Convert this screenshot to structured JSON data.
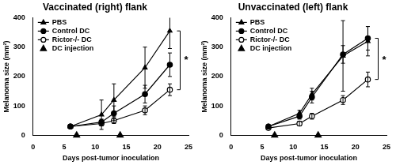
{
  "chart_data": [
    {
      "type": "line",
      "title": "Vaccinated (right) flank",
      "x_label": "Days post-tumor inoculation",
      "y_label": "Melanoma size (mm²)",
      "xlim": [
        0,
        25
      ],
      "xticks": [
        0,
        5,
        10,
        15,
        20,
        25
      ],
      "ylim": [
        0,
        400
      ],
      "yticks": [
        0,
        100,
        200,
        300,
        400
      ],
      "grid": false,
      "legend": "upper left",
      "series": [
        {
          "name": "PBS",
          "color": "#000000",
          "marker": "triangle",
          "line_style": "solid",
          "x": [
            6,
            11,
            13,
            18,
            22
          ],
          "values": [
            30,
            70,
            120,
            230,
            355
          ],
          "errors": [
            3,
            50,
            55,
            70,
            60
          ]
        },
        {
          "name": "Control DC",
          "color": "#000000",
          "marker": "circle",
          "line_style": "solid",
          "x": [
            6,
            11,
            13,
            18,
            22
          ],
          "values": [
            30,
            45,
            75,
            140,
            240
          ],
          "errors": [
            3,
            10,
            25,
            30,
            40
          ]
        },
        {
          "name": "Rictor-/- DC",
          "color": "#000000",
          "marker": "open_circle",
          "line_style": "solid",
          "x": [
            6,
            11,
            13,
            18,
            22
          ],
          "values": [
            30,
            40,
            50,
            85,
            155
          ],
          "errors": [
            3,
            8,
            10,
            15,
            20
          ]
        },
        {
          "name": "DC injection",
          "color": "#000000",
          "marker": "triangle",
          "line_style": "none",
          "x": [
            7,
            14
          ],
          "values": [
            0,
            0
          ]
        }
      ],
      "annotations": [
        {
          "text": "*",
          "x": 24.3,
          "y": 255
        }
      ]
    },
    {
      "type": "line",
      "title": "Unvaccinated (left) flank",
      "x_label": "Days post-tumor inoculation",
      "y_label": "Melanoma size (mm²)",
      "xlim": [
        0,
        25
      ],
      "xticks": [
        0,
        5,
        10,
        15,
        20,
        25
      ],
      "ylim": [
        0,
        400
      ],
      "yticks": [
        0,
        100,
        200,
        300,
        400
      ],
      "grid": false,
      "legend": "upper left",
      "series": [
        {
          "name": "PBS",
          "color": "#000000",
          "marker": "triangle",
          "line_style": "solid",
          "x": [
            6,
            11,
            13,
            18,
            22
          ],
          "values": [
            30,
            75,
            140,
            270,
            320
          ],
          "errors": [
            3,
            10,
            20,
            120,
            50
          ]
        },
        {
          "name": "Control DC",
          "color": "#000000",
          "marker": "circle",
          "line_style": "solid",
          "x": [
            6,
            11,
            13,
            18,
            22
          ],
          "values": [
            30,
            65,
            130,
            275,
            330
          ],
          "errors": [
            3,
            10,
            20,
            30,
            40
          ]
        },
        {
          "name": "Rictor-/- DC",
          "color": "#000000",
          "marker": "open_circle",
          "line_style": "solid",
          "x": [
            6,
            11,
            13,
            18,
            22
          ],
          "values": [
            25,
            40,
            65,
            120,
            190
          ],
          "errors": [
            3,
            8,
            10,
            15,
            25
          ]
        },
        {
          "name": "DC injection",
          "color": "#000000",
          "marker": "triangle",
          "line_style": "none",
          "x": [
            7,
            14
          ],
          "values": [
            0,
            0
          ]
        }
      ],
      "annotations": [
        {
          "text": "*",
          "x": 24.3,
          "y": 255
        }
      ]
    }
  ]
}
